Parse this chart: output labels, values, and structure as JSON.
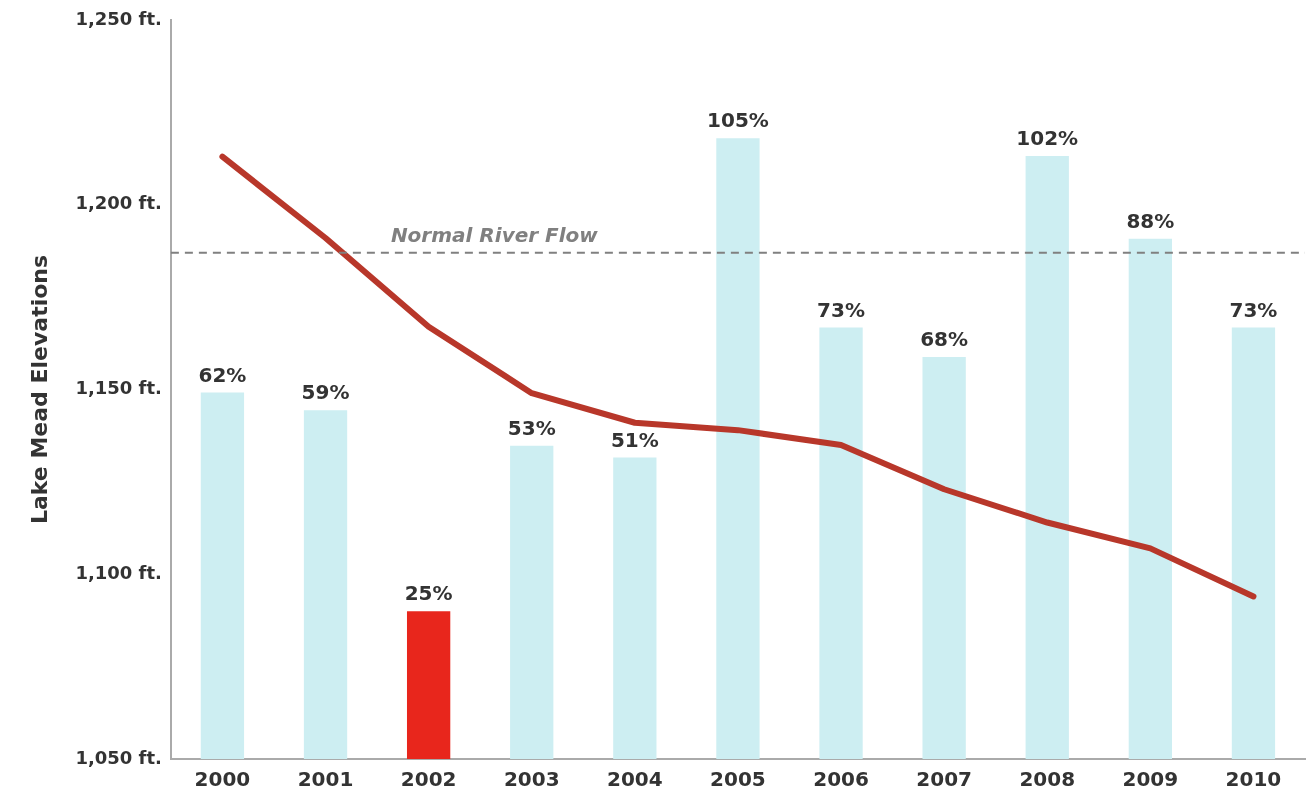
{
  "chart_data": {
    "type": "bar",
    "ylabel": "Lake Mead Elevations",
    "categories": [
      "2000",
      "2001",
      "2002",
      "2003",
      "2004",
      "2005",
      "2006",
      "2007",
      "2008",
      "2009",
      "2010"
    ],
    "series": [
      {
        "axis": "y2",
        "colors": [
          "#cdeef2",
          "#cdeef2",
          "#e8261c",
          "#cdeef2",
          "#cdeef2",
          "#cdeef2",
          "#cdeef2",
          "#cdeef2",
          "#cdeef2",
          "#cdeef2",
          "#cdeef2"
        ],
        "values": [
          62,
          59,
          25,
          53,
          51,
          105,
          73,
          68,
          102,
          88,
          73
        ],
        "value_labels": [
          "62%",
          "59%",
          "25%",
          "53%",
          "51%",
          "105%",
          "73%",
          "68%",
          "102%",
          "88%",
          "73%"
        ]
      },
      {
        "type": "line",
        "color": "#b8372a",
        "values": [
          1213,
          1191,
          1167,
          1149,
          1141,
          1139,
          1135,
          1123,
          1114,
          1107,
          1094
        ]
      }
    ],
    "ylim": [
      1050,
      1250
    ],
    "yticks": [
      {
        "value": 1050,
        "label": "1,050 ft."
      },
      {
        "value": 1100,
        "label": "1,100 ft."
      },
      {
        "value": 1150,
        "label": "1,150 ft."
      },
      {
        "value": 1200,
        "label": "1,200 ft."
      },
      {
        "value": 1250,
        "label": "1,250 ft."
      }
    ],
    "y2lim": [
      0,
      125
    ],
    "ref_lines": [
      {
        "axis": "y",
        "value": 1187,
        "label": "Normal River Flow",
        "color": "#808080",
        "line_style": "dashed"
      }
    ],
    "grid": false,
    "legend": false,
    "marker": "none"
  }
}
